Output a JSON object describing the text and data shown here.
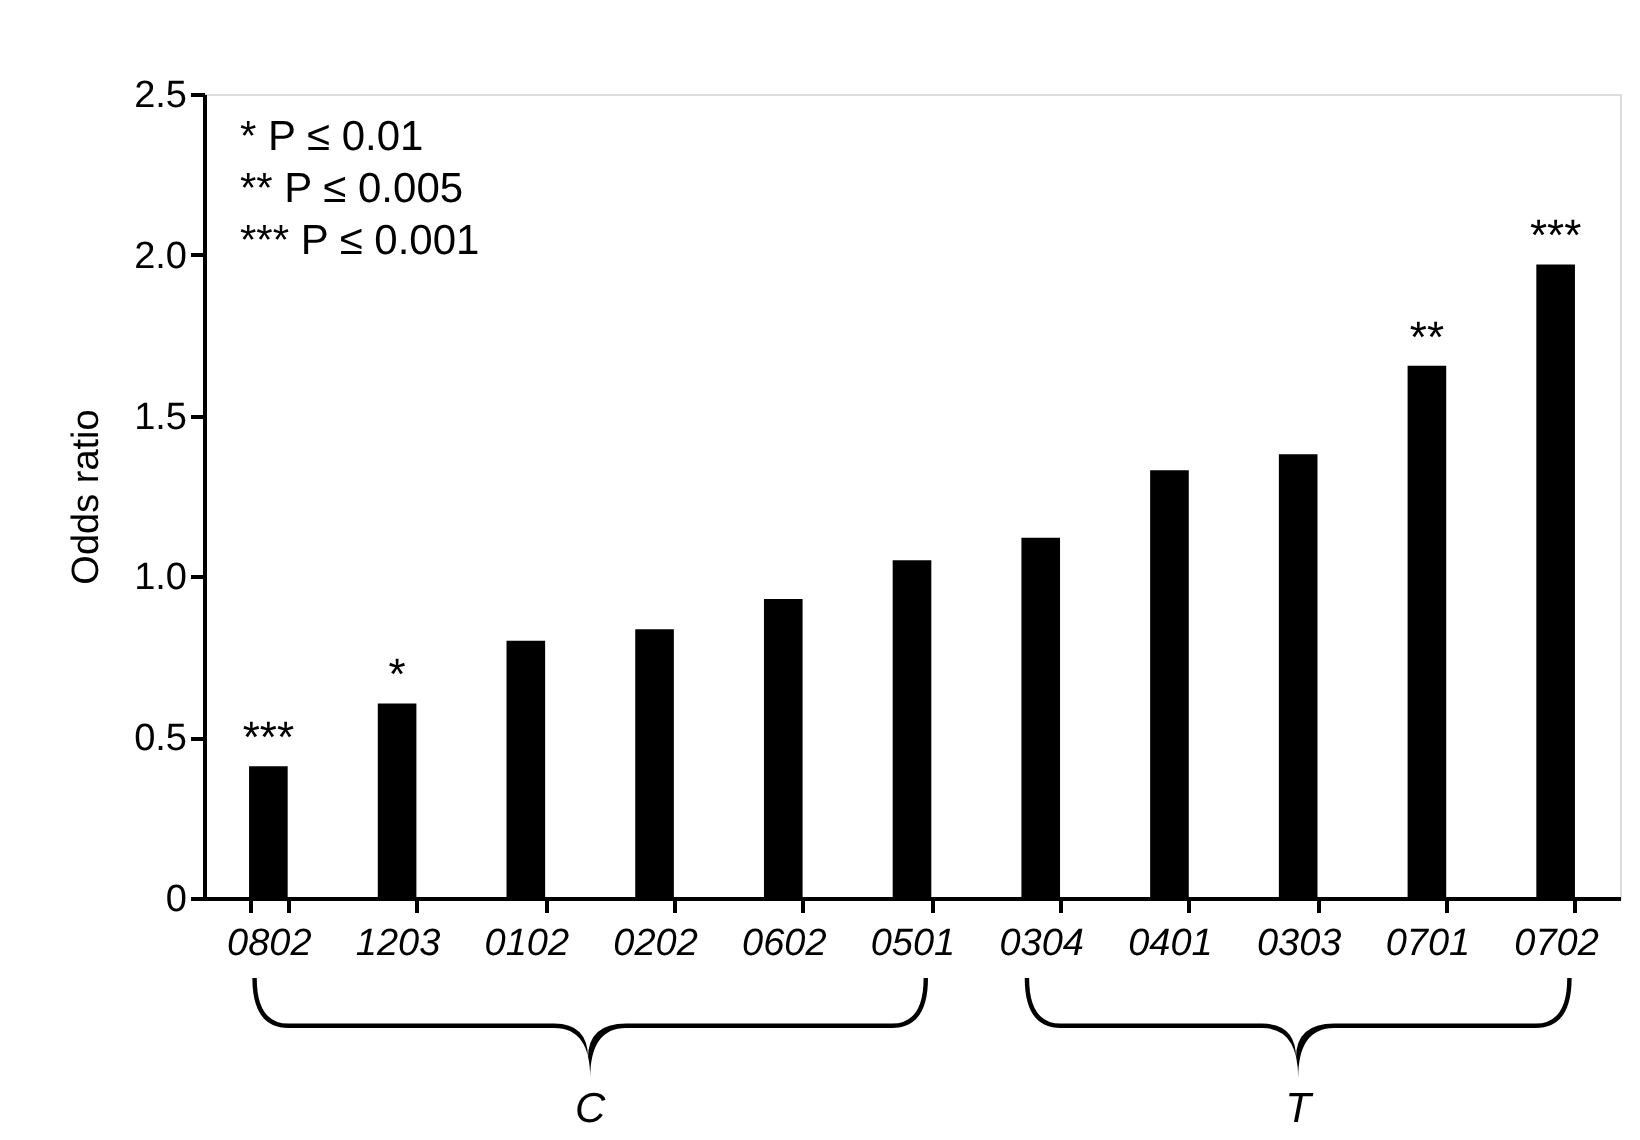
{
  "chart_data": {
    "type": "bar",
    "ylabel": "Odds ratio",
    "categories": [
      "0802",
      "1203",
      "0102",
      "0202",
      "0602",
      "0501",
      "0304",
      "0401",
      "0303",
      "0701",
      "0702"
    ],
    "values": [
      0.41,
      0.605,
      0.8,
      0.836,
      0.93,
      1.05,
      1.12,
      1.33,
      1.38,
      1.655,
      1.97
    ],
    "color": "#000000",
    "ylim": [
      0,
      2.5
    ],
    "yticks": [
      0,
      0.5,
      {
        "value": 1,
        "label": "1.0"
      },
      1.5,
      {
        "value": 2,
        "label": "2.0"
      },
      2.5
    ],
    "grid": false,
    "annotations": [
      {
        "text": "***",
        "x": "0802",
        "y": 0.41
      },
      {
        "text": "*",
        "x": "1203",
        "y": 0.605
      },
      {
        "text": "**",
        "x": "0701",
        "y": 1.655
      },
      {
        "text": "***",
        "x": "0702",
        "y": 1.97
      },
      "* P ≤ 0.01",
      "** P ≤ 0.005",
      "*** P ≤ 0.001",
      "C",
      "T"
    ]
  }
}
